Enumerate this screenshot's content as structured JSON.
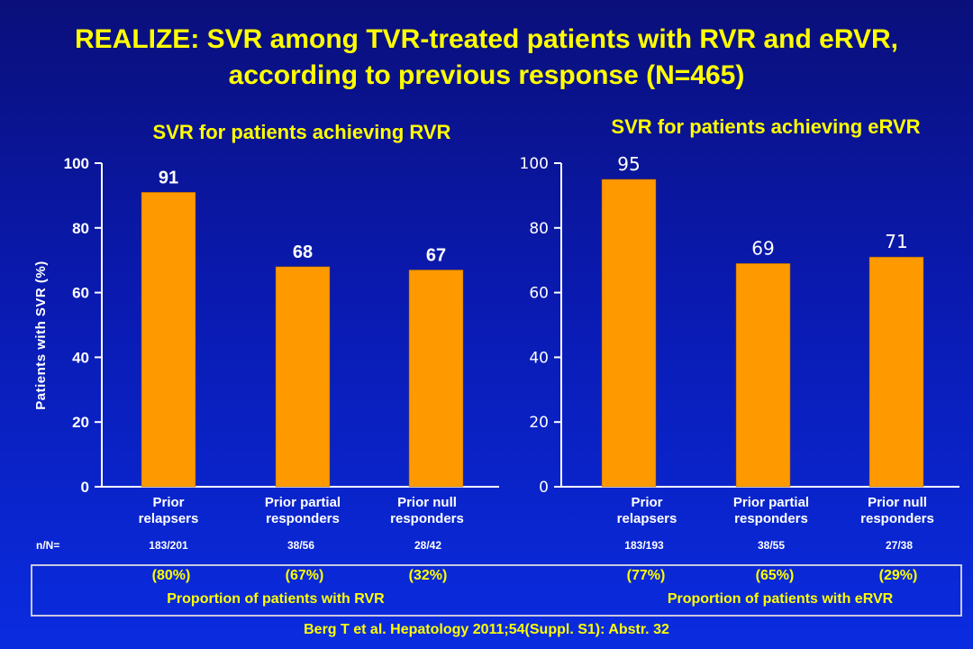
{
  "title_line1": "REALIZE: SVR among TVR-treated patients with RVR and eRVR,",
  "title_line2": "according to previous response (N=465)",
  "ylabel": "Patients with SVR (%)",
  "nn_label": "n/N=",
  "citation": "Berg T et al. Hepatology 2011;54(Suppl. S1): Abstr. 32",
  "colors": {
    "bar": "#ff9900",
    "text": "#ffffff",
    "accent": "#ffff00"
  },
  "chart_data": [
    {
      "type": "bar",
      "title": "SVR for patients achieving RVR",
      "categories": [
        "Prior\nrelapsers",
        "Prior partial\nresponders",
        "Prior null\nresponders"
      ],
      "values": [
        91,
        68,
        67
      ],
      "value_labels": [
        "91",
        "68",
        "67"
      ],
      "ylim": [
        0,
        100
      ],
      "yticks": [
        "0",
        "20",
        "40",
        "60",
        "80",
        "100"
      ],
      "grid": false,
      "nn": [
        "183/201",
        "38/56",
        "28/42"
      ],
      "proportions": [
        "(80%)",
        "(67%)",
        "(32%)"
      ],
      "proportion_label": "Proportion of patients with RVR"
    },
    {
      "type": "bar",
      "title": "SVR for patients achieving eRVR",
      "categories": [
        "Prior\nrelapsers",
        "Prior partial\nresponders",
        "Prior null\nresponders"
      ],
      "values": [
        95,
        69,
        71
      ],
      "value_labels": [
        "95",
        "69",
        "71"
      ],
      "ylim": [
        0,
        100
      ],
      "yticks": [
        "0",
        "20",
        "40",
        "60",
        "80",
        "100"
      ],
      "grid": false,
      "nn": [
        "183/193",
        "38/55",
        "27/38"
      ],
      "proportions": [
        "(77%)",
        "(65%)",
        "(29%)"
      ],
      "proportion_label": "Proportion of patients with eRVR"
    }
  ]
}
